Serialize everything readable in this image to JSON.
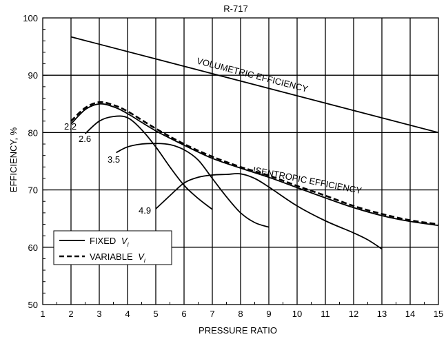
{
  "chart_data": {
    "type": "line",
    "title": "R-717",
    "xlabel": "PRESSURE RATIO",
    "ylabel": "EFFICIENCY, %",
    "xlim": [
      1,
      15
    ],
    "ylim": [
      50,
      100
    ],
    "x_ticks": [
      1,
      2,
      3,
      4,
      5,
      6,
      7,
      8,
      9,
      10,
      11,
      12,
      13,
      14,
      15
    ],
    "y_ticks": [
      50,
      60,
      70,
      80,
      90,
      100
    ],
    "grid": true,
    "legend": {
      "placement": "bottom-left",
      "entries": [
        {
          "label": "FIXED",
          "subscript": "V",
          "sub": "i",
          "style": "solid"
        },
        {
          "label": "VARIABLE",
          "subscript": "V",
          "sub": "i",
          "style": "dashed"
        }
      ]
    },
    "annotations": [
      {
        "text": "VOLUMETRIC EFFICIENCY"
      },
      {
        "text": "ISENTROPIC EFFICIENCY"
      }
    ],
    "series": [
      {
        "name": "VOLUMETRIC EFFICIENCY",
        "style": "solid",
        "x": [
          2,
          15
        ],
        "y": [
          96.7,
          80.0
        ]
      },
      {
        "name": "VARIABLE",
        "style": "dashed",
        "x": [
          2,
          2.5,
          3,
          3.5,
          4,
          5,
          6,
          7,
          8,
          9,
          10,
          11,
          12,
          13,
          14,
          15
        ],
        "y": [
          82.0,
          84.3,
          85.3,
          84.8,
          83.7,
          80.7,
          78.0,
          75.8,
          74.0,
          72.5,
          70.7,
          69.0,
          67.2,
          65.8,
          64.7,
          64.0
        ]
      },
      {
        "name": "2.2",
        "style": "solid",
        "x": [
          2,
          2.5,
          3,
          3.5,
          4,
          5,
          6,
          7,
          8,
          9,
          10,
          11,
          12,
          13,
          14,
          15
        ],
        "y": [
          81.5,
          84.0,
          85.0,
          84.5,
          83.3,
          80.3,
          77.8,
          75.5,
          73.8,
          72.2,
          70.4,
          68.6,
          66.9,
          65.5,
          64.5,
          63.8
        ]
      },
      {
        "name": "2.6",
        "style": "solid",
        "x": [
          2.5,
          3,
          3.5,
          4,
          4.5,
          5,
          5.5,
          6,
          6.5,
          7
        ],
        "y": [
          79.8,
          82.0,
          82.8,
          82.6,
          80.5,
          77.5,
          74.0,
          70.8,
          68.5,
          66.6
        ]
      },
      {
        "name": "3.5",
        "style": "solid",
        "x": [
          3.6,
          4,
          4.5,
          5,
          5.5,
          6,
          6.5,
          7,
          7.5,
          8,
          8.5,
          9
        ],
        "y": [
          76.5,
          77.5,
          78.0,
          78.1,
          77.9,
          77.0,
          75.2,
          72.0,
          68.8,
          66.0,
          64.3,
          63.5
        ]
      },
      {
        "name": "4.9",
        "style": "solid",
        "x": [
          5,
          5.5,
          6,
          6.5,
          7,
          7.5,
          8,
          8.5,
          9,
          10,
          11,
          12,
          12.5,
          13
        ],
        "y": [
          66.7,
          69.0,
          71.2,
          72.2,
          72.6,
          72.7,
          72.8,
          72.0,
          70.5,
          67.2,
          64.6,
          62.5,
          61.3,
          59.7
        ]
      }
    ],
    "curve_labels": [
      "2.2",
      "2.6",
      "3.5",
      "4.9"
    ]
  }
}
